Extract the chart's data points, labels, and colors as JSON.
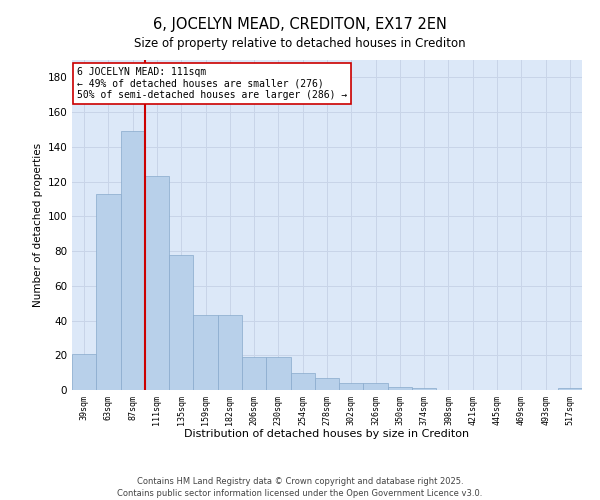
{
  "title": "6, JOCELYN MEAD, CREDITON, EX17 2EN",
  "subtitle": "Size of property relative to detached houses in Crediton",
  "xlabel": "Distribution of detached houses by size in Crediton",
  "ylabel": "Number of detached properties",
  "categories": [
    "39sqm",
    "63sqm",
    "87sqm",
    "111sqm",
    "135sqm",
    "159sqm",
    "182sqm",
    "206sqm",
    "230sqm",
    "254sqm",
    "278sqm",
    "302sqm",
    "326sqm",
    "350sqm",
    "374sqm",
    "398sqm",
    "421sqm",
    "445sqm",
    "469sqm",
    "493sqm",
    "517sqm"
  ],
  "values": [
    21,
    113,
    149,
    123,
    78,
    43,
    43,
    19,
    19,
    10,
    7,
    4,
    4,
    2,
    1,
    0,
    0,
    0,
    0,
    0,
    1
  ],
  "bar_color": "#b8d0ea",
  "bar_edgecolor": "#88aacc",
  "bar_linewidth": 0.5,
  "red_line_color": "#cc0000",
  "annotation_text": "6 JOCELYN MEAD: 111sqm\n← 49% of detached houses are smaller (276)\n50% of semi-detached houses are larger (286) →",
  "annotation_box_edgecolor": "#cc0000",
  "annotation_fontsize": 7.0,
  "ylim": [
    0,
    190
  ],
  "yticks": [
    0,
    20,
    40,
    60,
    80,
    100,
    120,
    140,
    160,
    180
  ],
  "grid_color": "#c8d4e8",
  "background_color": "#dce8f8",
  "footer": "Contains HM Land Registry data © Crown copyright and database right 2025.\nContains public sector information licensed under the Open Government Licence v3.0.",
  "title_fontsize": 10.5,
  "subtitle_fontsize": 8.5,
  "xlabel_fontsize": 8.0,
  "ylabel_fontsize": 7.5,
  "footer_fontsize": 6.0
}
